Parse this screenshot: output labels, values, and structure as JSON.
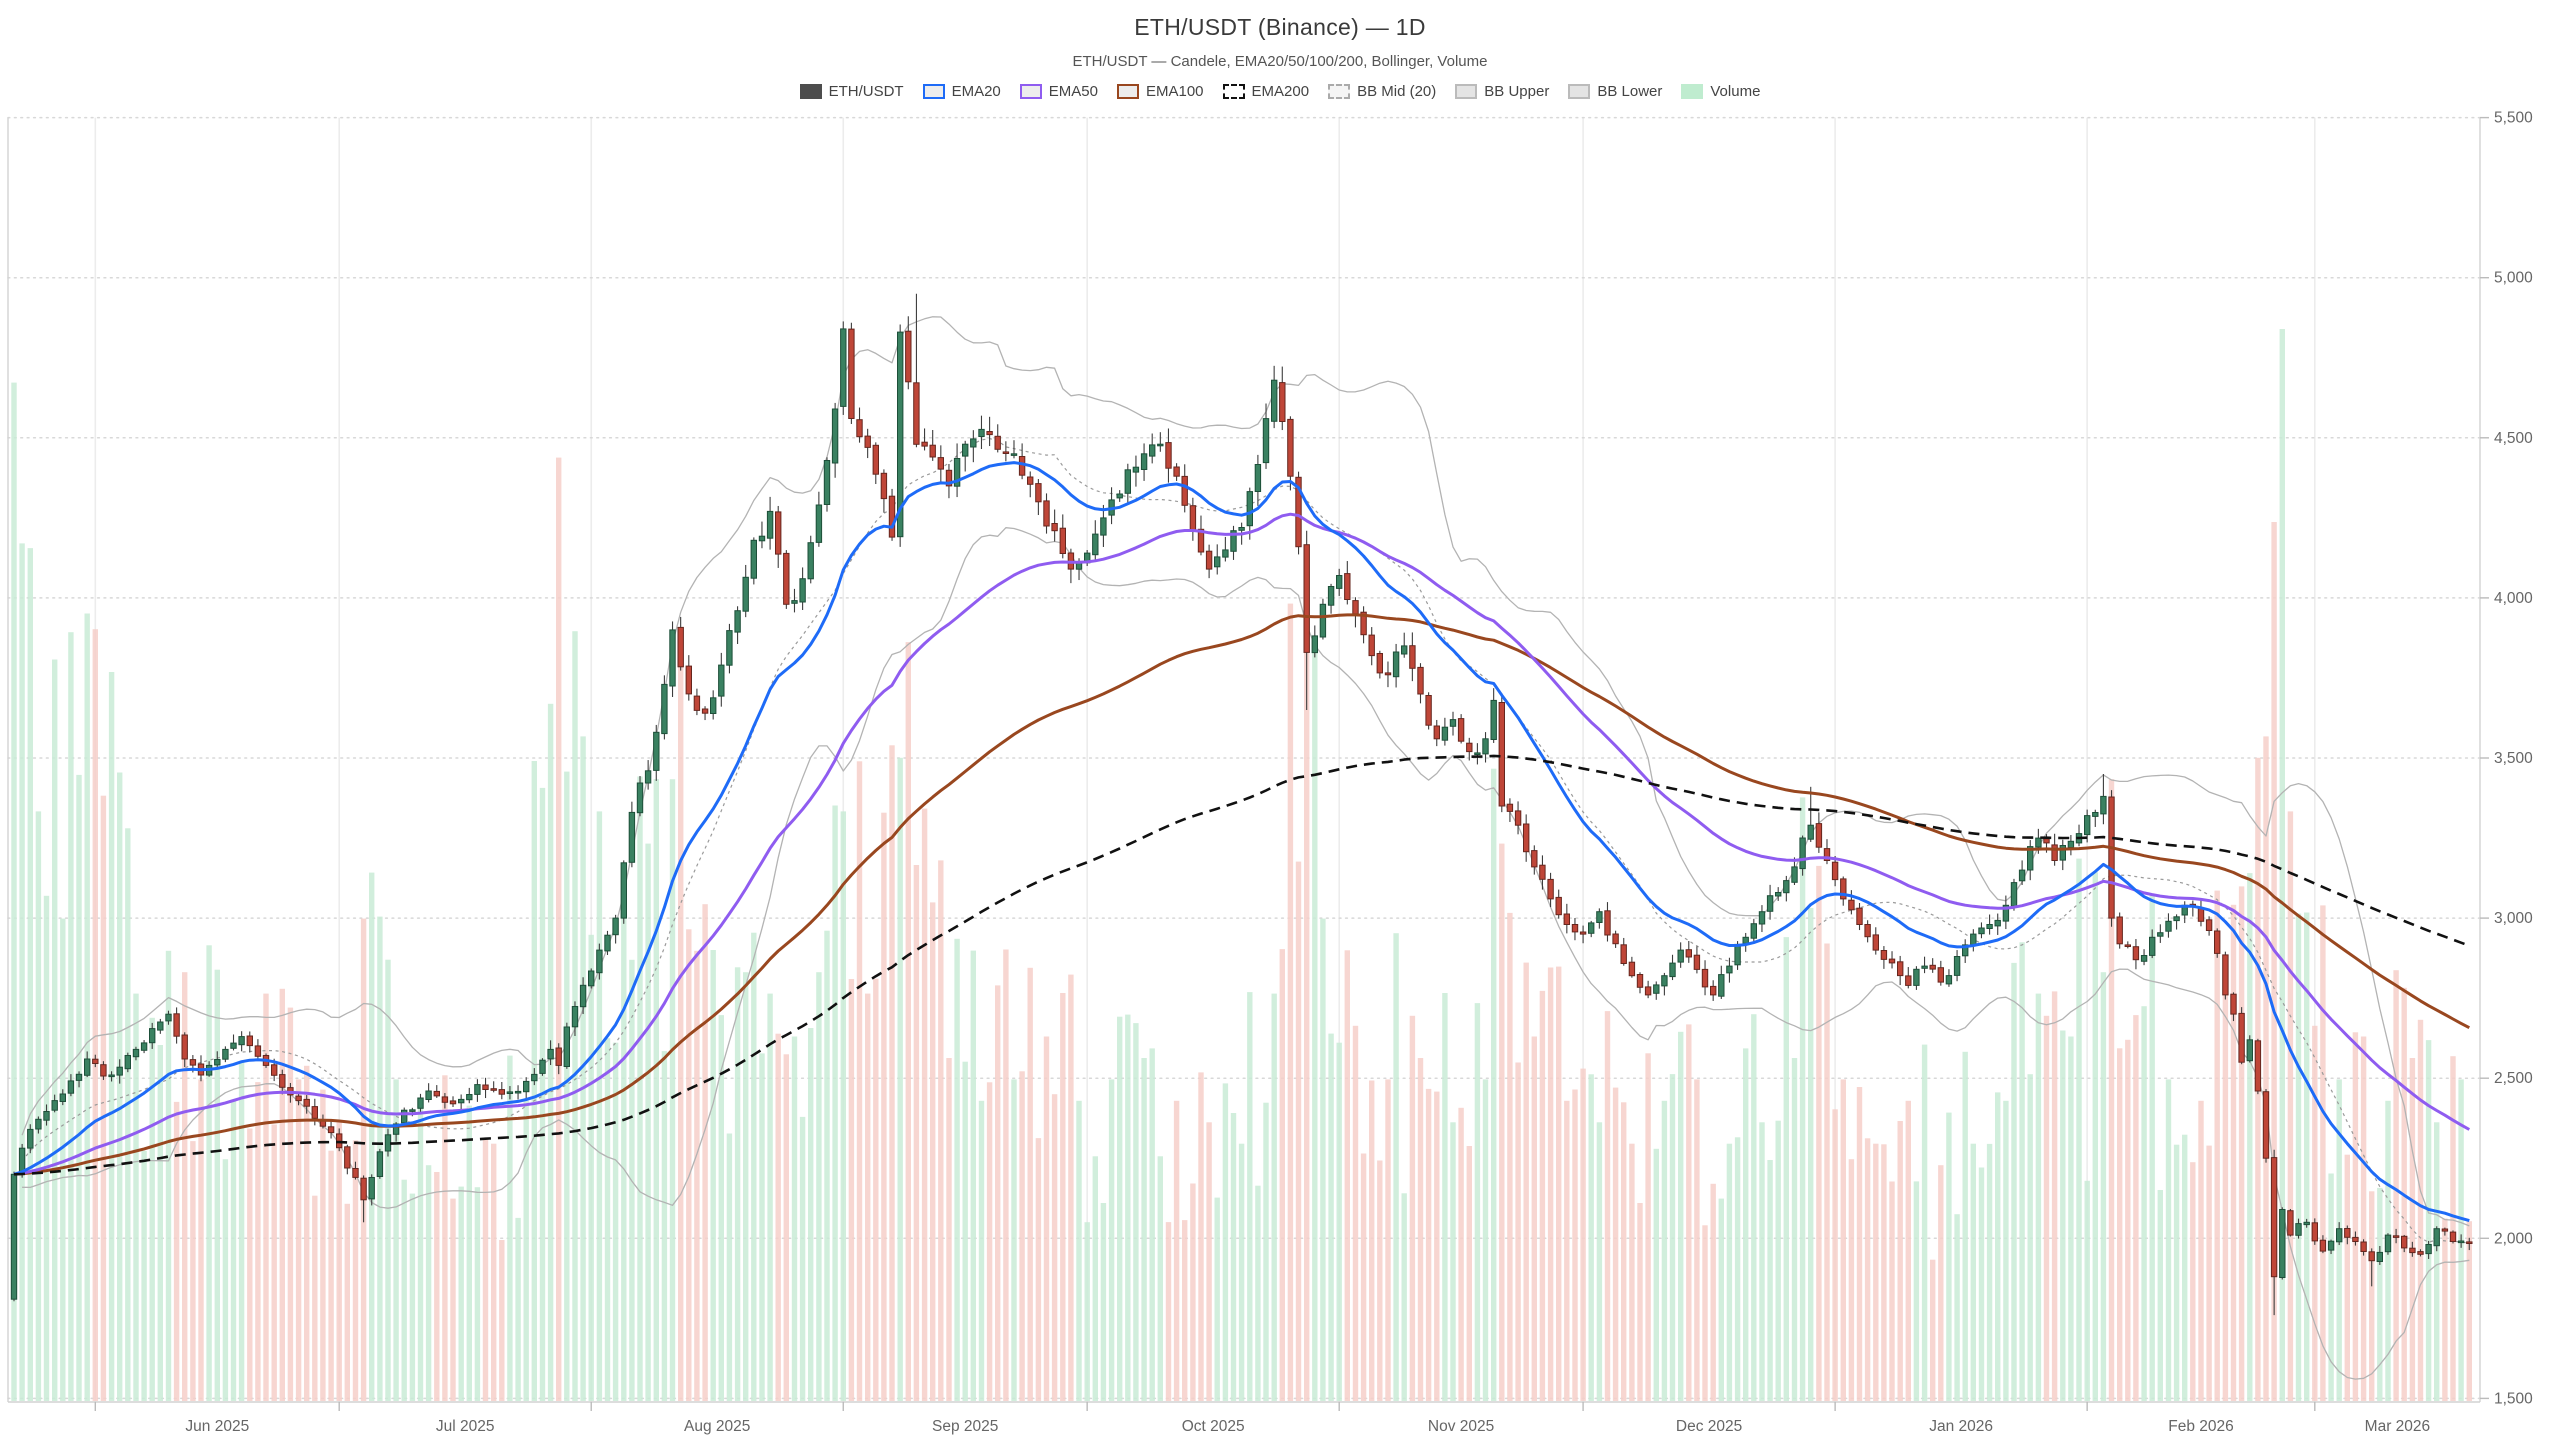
{
  "header": {
    "title": "ETH/USDT (Binance) — 1D",
    "subtitle": "ETH/USDT — Candele, EMA20/50/100/200, Bollinger, Volume"
  },
  "legend": {
    "items": [
      {
        "label": "ETH/USDT",
        "fill": "#4d4d4d",
        "border": "#4d4d4d",
        "dashed": false
      },
      {
        "label": "EMA20",
        "fill": "#ededed",
        "border": "#1e6bf7",
        "dashed": false
      },
      {
        "label": "EMA50",
        "fill": "#ededed",
        "border": "#8f5cf0",
        "dashed": false
      },
      {
        "label": "EMA100",
        "fill": "#ededed",
        "border": "#99471f",
        "dashed": false
      },
      {
        "label": "EMA200",
        "fill": "#ffffff",
        "border": "#111111",
        "dashed": true
      },
      {
        "label": "BB Mid (20)",
        "fill": "#f5f5f5",
        "border": "#aaaaaa",
        "dashed": true
      },
      {
        "label": "BB Upper",
        "fill": "#e4e4e4",
        "border": "#bbbbbb",
        "dashed": false
      },
      {
        "label": "BB Lower",
        "fill": "#e4e4e4",
        "border": "#bbbbbb",
        "dashed": false
      },
      {
        "label": "Volume",
        "fill": "#bfeccf",
        "border": "#bfeccf",
        "dashed": false
      }
    ]
  },
  "chart_data": {
    "type": "candlestick",
    "symbol": "ETH/USDT",
    "exchange": "Binance",
    "timeframe": "1D",
    "indicators": [
      "EMA20",
      "EMA50",
      "EMA100",
      "EMA200",
      "BB Mid (20)",
      "BB Upper",
      "BB Lower",
      "Volume"
    ],
    "x_axis": {
      "start_date": "2025-05-22",
      "end_date": "2026-03-20",
      "labels": [
        "Jun 2025",
        "Jul 2025",
        "Aug 2025",
        "Sep 2025",
        "Oct 2025",
        "Nov 2025",
        "Dec 2025",
        "Jan 2026",
        "Feb 2026",
        "Mar 2026"
      ]
    },
    "y_axis": {
      "min": 1500,
      "max": 5500,
      "tick_step": 500,
      "tick_labels": [
        "5,500",
        "5,000",
        "4,500",
        "4,000",
        "3,500",
        "3,000",
        "2,500",
        "2,000",
        "1,500"
      ]
    },
    "first_open": 1810,
    "price_anchors": [
      [
        "2025-05-22",
        2200
      ],
      [
        "2025-05-24",
        2340
      ],
      [
        "2025-05-27",
        2430
      ],
      [
        "2025-05-31",
        2560
      ],
      [
        "2025-06-03",
        2510
      ],
      [
        "2025-06-06",
        2590
      ],
      [
        "2025-06-10",
        2700
      ],
      [
        "2025-06-12",
        2560
      ],
      [
        "2025-06-14",
        2510
      ],
      [
        "2025-06-17",
        2590
      ],
      [
        "2025-06-19",
        2630
      ],
      [
        "2025-06-22",
        2540
      ],
      [
        "2025-06-26",
        2430
      ],
      [
        "2025-06-30",
        2330
      ],
      [
        "2025-07-03",
        2190
      ],
      [
        "2025-07-04",
        2120
      ],
      [
        "2025-07-06",
        2270
      ],
      [
        "2025-07-09",
        2400
      ],
      [
        "2025-07-12",
        2460
      ],
      [
        "2025-07-15",
        2420
      ],
      [
        "2025-07-18",
        2480
      ],
      [
        "2025-07-21",
        2450
      ],
      [
        "2025-07-24",
        2490
      ],
      [
        "2025-07-27",
        2590
      ],
      [
        "2025-07-28",
        2540
      ],
      [
        "2025-07-29",
        2660
      ],
      [
        "2025-07-31",
        2790
      ],
      [
        "2025-08-02",
        2900
      ],
      [
        "2025-08-04",
        3000
      ],
      [
        "2025-08-06",
        3330
      ],
      [
        "2025-08-08",
        3460
      ],
      [
        "2025-08-10",
        3730
      ],
      [
        "2025-08-11",
        3900
      ],
      [
        "2025-08-13",
        3700
      ],
      [
        "2025-08-15",
        3640
      ],
      [
        "2025-08-17",
        3790
      ],
      [
        "2025-08-19",
        3960
      ],
      [
        "2025-08-21",
        4180
      ],
      [
        "2025-08-23",
        4270
      ],
      [
        "2025-08-25",
        3980
      ],
      [
        "2025-08-27",
        4060
      ],
      [
        "2025-08-29",
        4290
      ],
      [
        "2025-08-31",
        4590
      ],
      [
        "2025-09-01",
        4840
      ],
      [
        "2025-09-02",
        4560
      ],
      [
        "2025-09-04",
        4470
      ],
      [
        "2025-09-06",
        4310
      ],
      [
        "2025-09-07",
        4190
      ],
      [
        "2025-09-08",
        4830
      ],
      [
        "2025-09-10",
        4480
      ],
      [
        "2025-09-12",
        4440
      ],
      [
        "2025-09-14",
        4350
      ],
      [
        "2025-09-16",
        4480
      ],
      [
        "2025-09-19",
        4510
      ],
      [
        "2025-09-22",
        4450
      ],
      [
        "2025-09-25",
        4300
      ],
      [
        "2025-09-27",
        4210
      ],
      [
        "2025-09-29",
        4090
      ],
      [
        "2025-10-01",
        4140
      ],
      [
        "2025-10-03",
        4250
      ],
      [
        "2025-10-06",
        4400
      ],
      [
        "2025-10-08",
        4450
      ],
      [
        "2025-10-10",
        4480
      ],
      [
        "2025-10-12",
        4380
      ],
      [
        "2025-10-14",
        4210
      ],
      [
        "2025-10-16",
        4090
      ],
      [
        "2025-10-18",
        4150
      ],
      [
        "2025-10-20",
        4220
      ],
      [
        "2025-10-23",
        4560
      ],
      [
        "2025-10-24",
        4680
      ],
      [
        "2025-10-26",
        4380
      ],
      [
        "2025-10-27",
        4160
      ],
      [
        "2025-10-28",
        3830
      ],
      [
        "2025-10-30",
        3980
      ],
      [
        "2025-11-01",
        4070
      ],
      [
        "2025-11-03",
        3950
      ],
      [
        "2025-11-05",
        3820
      ],
      [
        "2025-11-07",
        3760
      ],
      [
        "2025-11-09",
        3850
      ],
      [
        "2025-11-11",
        3700
      ],
      [
        "2025-11-13",
        3560
      ],
      [
        "2025-11-15",
        3620
      ],
      [
        "2025-11-17",
        3520
      ],
      [
        "2025-11-19",
        3560
      ],
      [
        "2025-11-20",
        3680
      ],
      [
        "2025-11-21",
        3350
      ],
      [
        "2025-11-23",
        3290
      ],
      [
        "2025-11-25",
        3160
      ],
      [
        "2025-11-27",
        3060
      ],
      [
        "2025-11-29",
        2980
      ],
      [
        "2025-12-01",
        2950
      ],
      [
        "2025-12-03",
        3020
      ],
      [
        "2025-12-05",
        2920
      ],
      [
        "2025-12-07",
        2820
      ],
      [
        "2025-12-09",
        2760
      ],
      [
        "2025-12-11",
        2820
      ],
      [
        "2025-12-13",
        2900
      ],
      [
        "2025-12-15",
        2840
      ],
      [
        "2025-12-17",
        2760
      ],
      [
        "2025-12-19",
        2850
      ],
      [
        "2025-12-21",
        2940
      ],
      [
        "2025-12-23",
        3020
      ],
      [
        "2025-12-25",
        3080
      ],
      [
        "2025-12-27",
        3160
      ],
      [
        "2025-12-29",
        3290
      ],
      [
        "2025-12-31",
        3180
      ],
      [
        "2026-01-02",
        3060
      ],
      [
        "2026-01-04",
        2980
      ],
      [
        "2026-01-06",
        2900
      ],
      [
        "2026-01-08",
        2860
      ],
      [
        "2026-01-10",
        2790
      ],
      [
        "2026-01-12",
        2850
      ],
      [
        "2026-01-14",
        2800
      ],
      [
        "2026-01-16",
        2880
      ],
      [
        "2026-01-18",
        2950
      ],
      [
        "2026-01-20",
        2980
      ],
      [
        "2026-01-22",
        3040
      ],
      [
        "2026-01-24",
        3150
      ],
      [
        "2026-01-26",
        3250
      ],
      [
        "2026-01-28",
        3180
      ],
      [
        "2026-01-30",
        3240
      ],
      [
        "2026-02-01",
        3320
      ],
      [
        "2026-02-03",
        3380
      ],
      [
        "2026-02-04",
        3000
      ],
      [
        "2026-02-05",
        2920
      ],
      [
        "2026-02-07",
        2870
      ],
      [
        "2026-02-09",
        2940
      ],
      [
        "2026-02-11",
        2990
      ],
      [
        "2026-02-13",
        3040
      ],
      [
        "2026-02-15",
        2990
      ],
      [
        "2026-02-17",
        2890
      ],
      [
        "2026-02-18",
        2760
      ],
      [
        "2026-02-19",
        2700
      ],
      [
        "2026-02-20",
        2550
      ],
      [
        "2026-02-21",
        2620
      ],
      [
        "2026-02-22",
        2460
      ],
      [
        "2026-02-23",
        2250
      ],
      [
        "2026-02-24",
        1880
      ],
      [
        "2026-02-25",
        2090
      ],
      [
        "2026-02-26",
        2010
      ],
      [
        "2026-02-28",
        2050
      ],
      [
        "2026-03-02",
        1960
      ],
      [
        "2026-03-04",
        2030
      ],
      [
        "2026-03-06",
        1990
      ],
      [
        "2026-03-08",
        1930
      ],
      [
        "2026-03-10",
        2010
      ],
      [
        "2026-03-12",
        1970
      ],
      [
        "2026-03-14",
        1950
      ],
      [
        "2026-03-16",
        2030
      ],
      [
        "2026-03-18",
        1990
      ],
      [
        "2026-03-20",
        1985
      ]
    ],
    "wick_overrides": {
      "2025-07-04": {
        "low": 2050
      },
      "2025-09-10": {
        "high": 4950
      },
      "2025-10-28": {
        "low": 3650
      },
      "2025-12-29": {
        "high": 3410
      },
      "2026-02-03": {
        "high": 3450
      },
      "2026-02-24": {
        "low": 1760
      },
      "2026-03-08": {
        "low": 1850
      }
    },
    "volume_anchors": [
      [
        "2025-05-22",
        0.95
      ],
      [
        "2025-05-23",
        0.8
      ],
      [
        "2025-05-25",
        0.55
      ],
      [
        "2025-05-28",
        0.45
      ],
      [
        "2025-06-01",
        0.72
      ],
      [
        "2025-06-03",
        0.68
      ],
      [
        "2025-06-06",
        0.38
      ],
      [
        "2025-06-10",
        0.42
      ],
      [
        "2025-06-14",
        0.3
      ],
      [
        "2025-06-18",
        0.28
      ],
      [
        "2025-06-22",
        0.38
      ],
      [
        "2025-06-26",
        0.3
      ],
      [
        "2025-07-01",
        0.26
      ],
      [
        "2025-07-04",
        0.45
      ],
      [
        "2025-07-08",
        0.3
      ],
      [
        "2025-07-12",
        0.22
      ],
      [
        "2025-07-16",
        0.2
      ],
      [
        "2025-07-20",
        0.24
      ],
      [
        "2025-07-24",
        0.28
      ],
      [
        "2025-07-28",
        0.88
      ],
      [
        "2025-07-31",
        0.62
      ],
      [
        "2025-08-02",
        0.55
      ],
      [
        "2025-08-05",
        0.48
      ],
      [
        "2025-08-08",
        0.52
      ],
      [
        "2025-08-11",
        0.58
      ],
      [
        "2025-08-14",
        0.42
      ],
      [
        "2025-08-17",
        0.36
      ],
      [
        "2025-08-20",
        0.4
      ],
      [
        "2025-08-23",
        0.38
      ],
      [
        "2025-08-26",
        0.34
      ],
      [
        "2025-08-29",
        0.4
      ],
      [
        "2025-09-01",
        0.55
      ],
      [
        "2025-09-04",
        0.38
      ],
      [
        "2025-09-08",
        0.6
      ],
      [
        "2025-09-10",
        0.5
      ],
      [
        "2025-09-14",
        0.32
      ],
      [
        "2025-09-18",
        0.28
      ],
      [
        "2025-09-22",
        0.3
      ],
      [
        "2025-09-26",
        0.34
      ],
      [
        "2025-09-30",
        0.28
      ],
      [
        "2025-10-04",
        0.3
      ],
      [
        "2025-10-08",
        0.32
      ],
      [
        "2025-10-12",
        0.28
      ],
      [
        "2025-10-16",
        0.26
      ],
      [
        "2025-10-20",
        0.24
      ],
      [
        "2025-10-24",
        0.38
      ],
      [
        "2025-10-28",
        0.75
      ],
      [
        "2025-10-30",
        0.45
      ],
      [
        "2025-11-03",
        0.35
      ],
      [
        "2025-11-07",
        0.3
      ],
      [
        "2025-11-11",
        0.32
      ],
      [
        "2025-11-15",
        0.26
      ],
      [
        "2025-11-19",
        0.3
      ],
      [
        "2025-11-21",
        0.52
      ],
      [
        "2025-11-25",
        0.34
      ],
      [
        "2025-11-29",
        0.28
      ],
      [
        "2025-12-03",
        0.26
      ],
      [
        "2025-12-07",
        0.24
      ],
      [
        "2025-12-11",
        0.28
      ],
      [
        "2025-12-15",
        0.3
      ],
      [
        "2025-12-19",
        0.24
      ],
      [
        "2025-12-23",
        0.26
      ],
      [
        "2025-12-27",
        0.32
      ],
      [
        "2025-12-29",
        0.46
      ],
      [
        "2026-01-02",
        0.3
      ],
      [
        "2026-01-06",
        0.24
      ],
      [
        "2026-01-10",
        0.28
      ],
      [
        "2026-01-14",
        0.22
      ],
      [
        "2026-01-18",
        0.24
      ],
      [
        "2026-01-22",
        0.28
      ],
      [
        "2026-01-26",
        0.38
      ],
      [
        "2026-01-30",
        0.34
      ],
      [
        "2026-02-03",
        0.4
      ],
      [
        "2026-02-04",
        0.58
      ],
      [
        "2026-02-07",
        0.36
      ],
      [
        "2026-02-11",
        0.3
      ],
      [
        "2026-02-15",
        0.28
      ],
      [
        "2026-02-18",
        0.38
      ],
      [
        "2026-02-20",
        0.48
      ],
      [
        "2026-02-22",
        0.6
      ],
      [
        "2026-02-23",
        0.62
      ],
      [
        "2026-02-24",
        0.82
      ],
      [
        "2026-02-25",
        1.0
      ],
      [
        "2026-02-26",
        0.55
      ],
      [
        "2026-03-01",
        0.35
      ],
      [
        "2026-03-04",
        0.3
      ],
      [
        "2026-03-07",
        0.34
      ],
      [
        "2026-03-10",
        0.28
      ],
      [
        "2026-03-13",
        0.32
      ],
      [
        "2026-03-16",
        0.26
      ],
      [
        "2026-03-19",
        0.3
      ]
    ],
    "colors": {
      "candle_up": "#3a8161",
      "candle_up_border": "#1d4f39",
      "candle_down": "#bf4638",
      "candle_down_border": "#66261e",
      "wick": "#3d3d3d",
      "volume_up": "#c9ebd6",
      "volume_down": "#f6cfc9",
      "ema20": "#1e6bf7",
      "ema50": "#8f5cf0",
      "ema100": "#99471f",
      "ema200": "#111111",
      "bb": "#b3b3b3",
      "bb_mid": "#9a9a9a",
      "grid": "#d8d8d8",
      "month_grid": "#ececec",
      "spine": "#d2d2d2",
      "tick_text": "#666666"
    },
    "bollinger": {
      "period": 20,
      "mult": 2
    },
    "ema_periods": [
      20,
      50,
      100,
      200
    ]
  }
}
